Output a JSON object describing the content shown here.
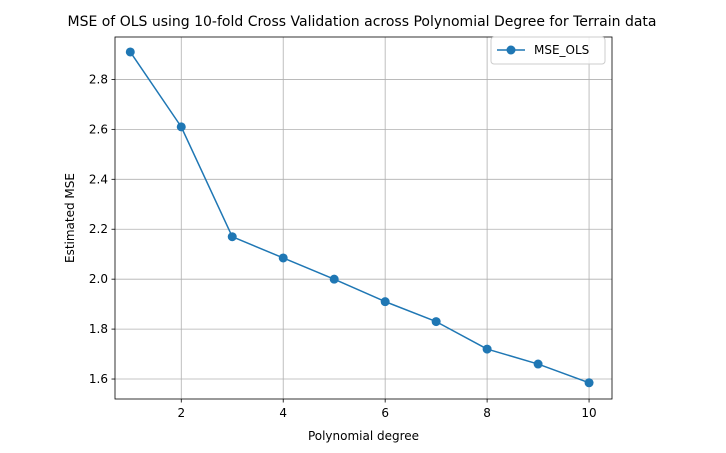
{
  "chart_data": {
    "type": "line",
    "title": "MSE of OLS using 10-fold Cross Validation across Polynomial Degree for Terrain data",
    "xlabel": "Polynomial degree",
    "ylabel": "Estimated MSE",
    "xlim": [
      0.7,
      10.45
    ],
    "ylim": [
      1.52,
      2.97
    ],
    "xticks": [
      2,
      4,
      6,
      8,
      10
    ],
    "yticks": [
      1.6,
      1.8,
      2.0,
      2.2,
      2.4,
      2.6,
      2.8
    ],
    "xtick_labels": [
      "2",
      "4",
      "6",
      "8",
      "10"
    ],
    "ytick_labels": [
      "1.6",
      "1.8",
      "2.0",
      "2.2",
      "2.4",
      "2.6",
      "2.8"
    ],
    "grid": true,
    "legend_position": "top-right",
    "series": [
      {
        "name": "MSE_OLS",
        "color": "#1f77b4",
        "marker": "circle",
        "x": [
          1,
          2,
          3,
          4,
          5,
          6,
          7,
          8,
          9,
          10
        ],
        "values": [
          2.91,
          2.61,
          2.17,
          2.085,
          2.0,
          1.91,
          1.83,
          1.72,
          1.66,
          1.585
        ]
      }
    ]
  }
}
